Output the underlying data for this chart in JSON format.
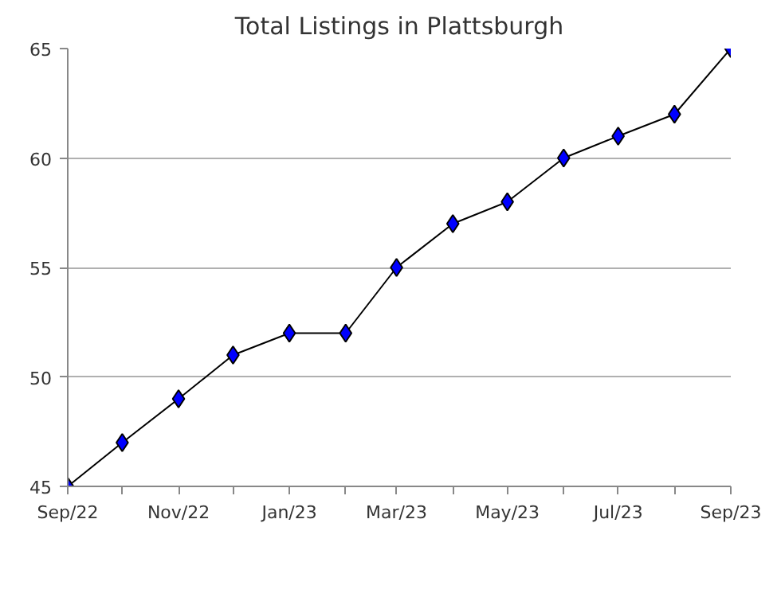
{
  "chart_data": {
    "type": "line",
    "title": "Total Listings in Plattsburgh",
    "x": [
      "2022-09",
      "2022-10",
      "2022-11",
      "2022-12",
      "2023-01",
      "2023-02",
      "2023-03",
      "2023-04",
      "2023-05",
      "2023-06",
      "2023-07",
      "2023-08",
      "2023-09"
    ],
    "series": [
      {
        "color": "#0000ff",
        "values": [
          45,
          47,
          49,
          51,
          52,
          52,
          55,
          57,
          58,
          60,
          61,
          62,
          65
        ]
      }
    ],
    "xlim": [
      "2022-09",
      "2023-09"
    ],
    "xticks": [
      {
        "value": "2022-09",
        "label": "Sep/22"
      },
      {
        "value": "2022-10",
        "label": null
      },
      {
        "value": "2022-11",
        "label": "Nov/22"
      },
      {
        "value": "2022-12",
        "label": null
      },
      {
        "value": "2023-01",
        "label": "Jan/23"
      },
      {
        "value": "2023-02",
        "label": null
      },
      {
        "value": "2023-03",
        "label": "Mar/23"
      },
      {
        "value": "2023-04",
        "label": null
      },
      {
        "value": "2023-05",
        "label": "May/23"
      },
      {
        "value": "2023-06",
        "label": null
      },
      {
        "value": "2023-07",
        "label": "Jul/23"
      },
      {
        "value": "2023-08",
        "label": null
      },
      {
        "value": "2023-09",
        "label": "Sep/23"
      }
    ],
    "ylim": [
      45,
      65
    ],
    "yticks": [
      45,
      50,
      55,
      60,
      65
    ],
    "grid": "y",
    "marker": "diamond",
    "line_style": "solid"
  }
}
